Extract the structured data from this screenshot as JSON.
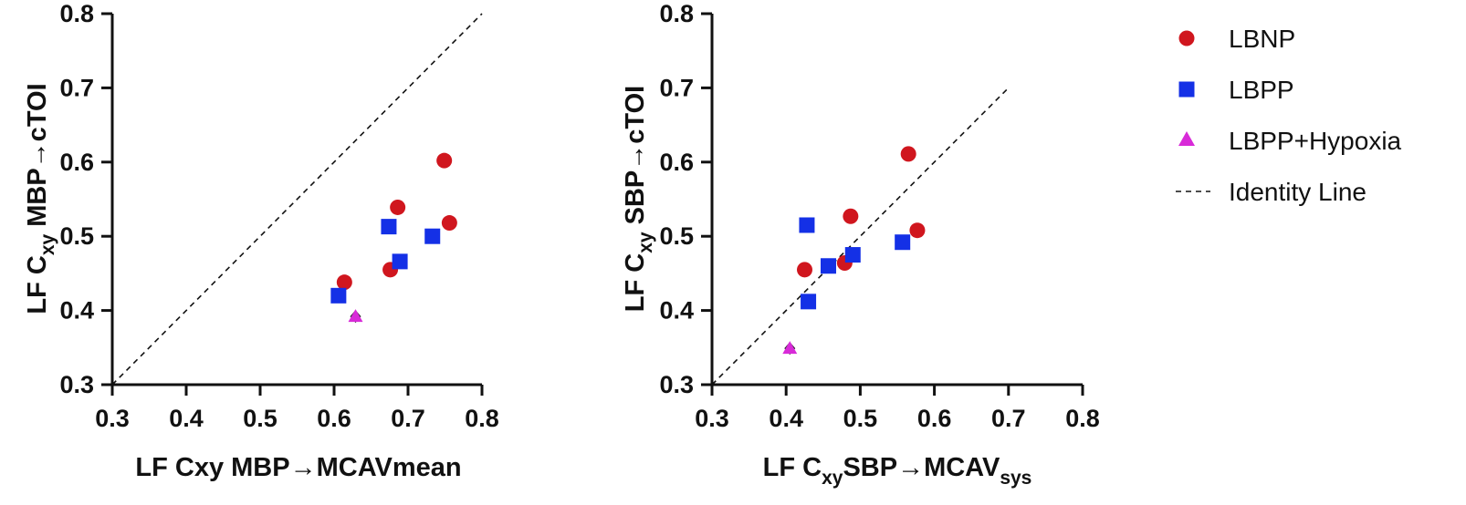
{
  "colors": {
    "LBNP": "#d0161e",
    "LBPP": "#1430e6",
    "LBPP+Hypoxia": "#d82ad8"
  },
  "legend": {
    "items": [
      {
        "key": "LBNP",
        "label": "LBNP",
        "marker": "circle"
      },
      {
        "key": "LBPP",
        "label": "LBPP",
        "marker": "square"
      },
      {
        "key": "LBPP+Hypoxia",
        "label": "LBPP+Hypoxia",
        "marker": "triangle"
      },
      {
        "key": "identity",
        "label": "Identity Line",
        "marker": "dashed-line"
      }
    ]
  },
  "chart_data": [
    {
      "type": "scatter",
      "xlabel": "LF Cxy MBP→MCAVmean",
      "ylabel": {
        "pre": "LF C",
        "sub": "xy",
        "post": " MBP→cTOI"
      },
      "xlim": [
        0.3,
        0.8
      ],
      "ylim": [
        0.3,
        0.8
      ],
      "xticks": [
        "0.3",
        "0.4",
        "0.5",
        "0.6",
        "0.7",
        "0.8"
      ],
      "yticks": [
        "0.3",
        "0.4",
        "0.5",
        "0.6",
        "0.7",
        "0.8"
      ],
      "identity_line": [
        [
          0.3,
          0.3
        ],
        [
          0.8,
          0.8
        ]
      ],
      "series": [
        {
          "name": "LBNP",
          "marker": "circle",
          "points": [
            [
              0.614,
              0.438
            ],
            [
              0.676,
              0.455
            ],
            [
              0.686,
              0.539
            ],
            [
              0.749,
              0.602
            ],
            [
              0.756,
              0.518
            ]
          ]
        },
        {
          "name": "LBPP",
          "marker": "square",
          "points": [
            [
              0.606,
              0.42
            ],
            [
              0.674,
              0.513
            ],
            [
              0.689,
              0.466
            ],
            [
              0.733,
              0.5
            ]
          ]
        },
        {
          "name": "LBPP+Hypoxia",
          "marker": "triangle",
          "points": [
            [
              0.629,
              0.392
            ]
          ]
        }
      ]
    },
    {
      "type": "scatter",
      "xlabel": {
        "pre": "LF C",
        "sub": "xy",
        "mid": "SBP→MCAV",
        "sub2": "sys"
      },
      "ylabel": {
        "pre": "LF C",
        "sub": "xy",
        "post": " SBP→cTOI"
      },
      "xlim": [
        0.3,
        0.8
      ],
      "ylim": [
        0.3,
        0.8
      ],
      "xticks": [
        "0.3",
        "0.4",
        "0.5",
        "0.6",
        "0.7",
        "0.8"
      ],
      "yticks": [
        "0.3",
        "0.4",
        "0.5",
        "0.6",
        "0.7",
        "0.8"
      ],
      "identity_line": [
        [
          0.3,
          0.3
        ],
        [
          0.7,
          0.7
        ]
      ],
      "series": [
        {
          "name": "LBNP",
          "marker": "circle",
          "points": [
            [
              0.425,
              0.455
            ],
            [
              0.479,
              0.464
            ],
            [
              0.487,
              0.527
            ],
            [
              0.565,
              0.611
            ],
            [
              0.577,
              0.508
            ]
          ]
        },
        {
          "name": "LBPP",
          "marker": "square",
          "points": [
            [
              0.428,
              0.515
            ],
            [
              0.43,
              0.412
            ],
            [
              0.457,
              0.46
            ],
            [
              0.49,
              0.475
            ],
            [
              0.557,
              0.492
            ]
          ]
        },
        {
          "name": "LBPP+Hypoxia",
          "marker": "triangle",
          "points": [
            [
              0.405,
              0.349
            ]
          ]
        }
      ]
    }
  ]
}
